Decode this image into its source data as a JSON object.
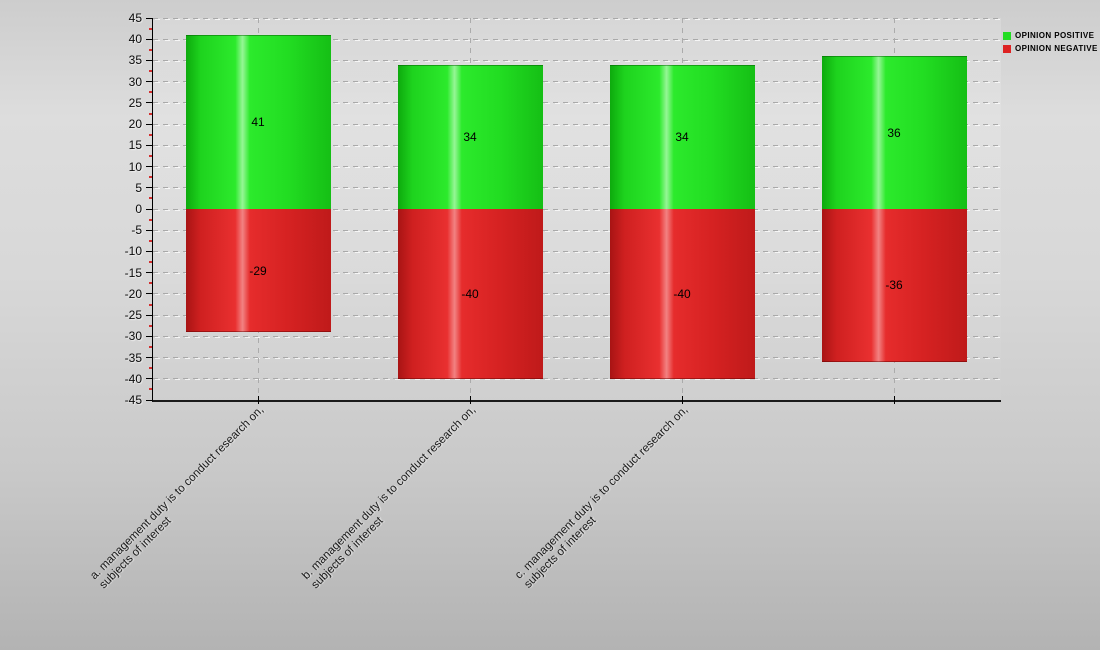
{
  "chart_data": {
    "type": "bar",
    "title": "",
    "xlabel": "",
    "ylabel": "",
    "categories": [
      "a. management duty is to conduct research on,\nsubjects of interest",
      "b. management duty is to conduct research on,\nsubjects of interest",
      "c. management duty is to conduct research on,\nsubjects of interest",
      ""
    ],
    "series": [
      {
        "name": "OPINION POSITIVE",
        "color": "#22dd22",
        "values": [
          41,
          34,
          34,
          36
        ]
      },
      {
        "name": "OPINION NEGATIVE",
        "color": "#dd2222",
        "values": [
          -29,
          -40,
          -40,
          -36
        ]
      }
    ],
    "ylim": [
      -45,
      45
    ],
    "ytick_step": 5,
    "y_minor_tick_step": 2.5,
    "grid": true,
    "legend_position": "top-right"
  },
  "colors": {
    "positive": "#22dd22",
    "negative": "#dd2222",
    "minor_tick": "#d32f2f",
    "axis": "#000000"
  }
}
